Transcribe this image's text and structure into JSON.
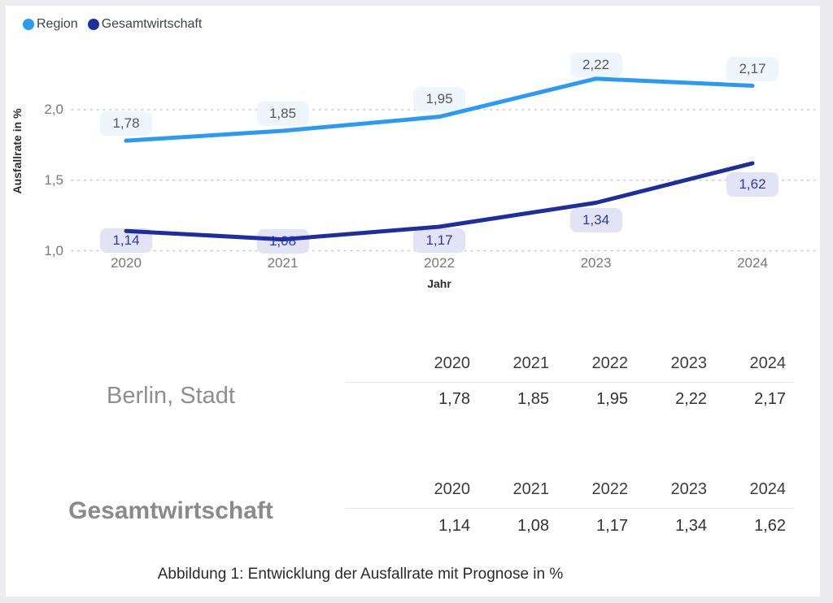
{
  "legend": {
    "items": [
      {
        "label": "Region",
        "color": "#2b9af3"
      },
      {
        "label": "Gesamtwirtschaft",
        "color": "#1e2d9f"
      }
    ]
  },
  "chart_data": {
    "type": "line",
    "title": "",
    "xlabel": "Jahr",
    "ylabel": "Ausfallrate in %",
    "categories": [
      "2020",
      "2021",
      "2022",
      "2023",
      "2024"
    ],
    "ylim": [
      0.95,
      2.35
    ],
    "grid": "horizontal-dotted",
    "legend_position": "top-left",
    "yticks": [
      {
        "label": "2,0",
        "value": 2.0
      },
      {
        "label": "1,5",
        "value": 1.5
      },
      {
        "label": "1,0",
        "value": 1.0
      }
    ],
    "series": [
      {
        "name": "Region",
        "color": "#2b9af3",
        "values": [
          1.78,
          1.85,
          1.95,
          2.22,
          2.17
        ],
        "labels": [
          "1,78",
          "1,85",
          "1,95",
          "2,22",
          "2,17"
        ],
        "label_bg": "#eef5fc",
        "label_color": "#55575e"
      },
      {
        "name": "Gesamtwirtschaft",
        "color": "#1e2d9f",
        "values": [
          1.14,
          1.08,
          1.17,
          1.34,
          1.62
        ],
        "labels": [
          "1,14",
          "1,08",
          "1,17",
          "1,34",
          "1,62"
        ],
        "label_bg": "#e2e4f5",
        "label_color": "#2b3aa6"
      }
    ]
  },
  "tables": [
    {
      "row_label": "Berlin, Stadt",
      "columns": [
        "2020",
        "2021",
        "2022",
        "2023",
        "2024"
      ],
      "values": [
        "1,78",
        "1,85",
        "1,95",
        "2,22",
        "2,17"
      ]
    },
    {
      "row_label": "Gesamtwirtschaft",
      "columns": [
        "2020",
        "2021",
        "2022",
        "2023",
        "2024"
      ],
      "values": [
        "1,14",
        "1,08",
        "1,17",
        "1,34",
        "1,62"
      ]
    }
  ],
  "caption": "Abbildung 1: Entwicklung der Ausfallrate mit Prognose in %"
}
